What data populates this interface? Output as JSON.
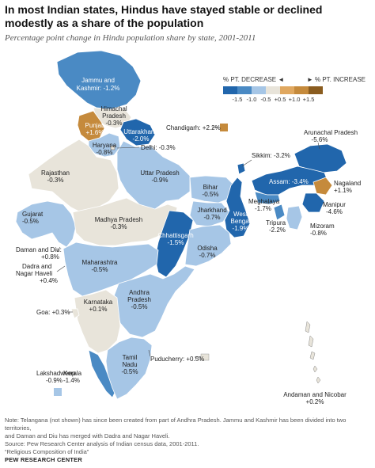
{
  "title": "In most Indian states, Hindus have stayed stable or declined modestly as a share of the population",
  "subtitle": "Percentage point change in Hindu population share by state, 2001-2011",
  "legend": {
    "decrease_label": "% PT. DECREASE ◄",
    "increase_label": "► % PT. INCREASE",
    "ticks": [
      "-1.5",
      "-1.0",
      "-0.5",
      "+0.5",
      "+1.0",
      "+1.5"
    ],
    "colors": [
      "#2166ac",
      "#4a8ac4",
      "#a6c6e6",
      "#e8e4da",
      "#e0a860",
      "#c58a3c",
      "#8a5c1f"
    ]
  },
  "colors": {
    "strong_decrease": "#2166ac",
    "medium_decrease": "#4a8ac4",
    "light_decrease": "#a6c6e6",
    "stable": "#e8e4da",
    "increase": "#c58a3c",
    "small_increase": "#e8e4da"
  },
  "states": {
    "jk": {
      "name": "Jammu and Kashmir",
      "value": "-1.2%"
    },
    "hp": {
      "name": "Himachal Pradesh",
      "value": "-0.3%"
    },
    "punjab": {
      "name": "Punjab",
      "value": "+1.6%"
    },
    "uttarakhand": {
      "name": "Uttarakhand",
      "value": "-2.0%"
    },
    "chandigarh": {
      "name": "Chandigarh",
      "value": "+2.2%"
    },
    "haryana": {
      "name": "Haryana",
      "value": "-0.8%"
    },
    "delhi": {
      "name": "Delhi",
      "value": "-0.3%"
    },
    "rajasthan": {
      "name": "Rajasthan",
      "value": "-0.3%"
    },
    "up": {
      "name": "Uttar Pradesh",
      "value": "-0.9%"
    },
    "sikkim": {
      "name": "Sikkim",
      "value": "-3.2%"
    },
    "arunachal": {
      "name": "Arunachal Pradesh",
      "value": "-5.6%"
    },
    "assam": {
      "name": "Assam",
      "value": "-3.4%"
    },
    "nagaland": {
      "name": "Nagaland",
      "value": "+1.1%"
    },
    "bihar": {
      "name": "Bihar",
      "value": "-0.5%"
    },
    "meghalaya": {
      "name": "Meghalaya",
      "value": "-1.7%"
    },
    "manipur": {
      "name": "Manipur",
      "value": "-4.6%"
    },
    "gujarat": {
      "name": "Gujarat",
      "value": "-0.5%"
    },
    "mp": {
      "name": "Madhya Pradesh",
      "value": "-0.3%"
    },
    "jharkhand": {
      "name": "Jharkhand",
      "value": "-0.7%"
    },
    "wb": {
      "name": "West Bengal",
      "value": "-1.9%"
    },
    "tripura": {
      "name": "Tripura",
      "value": "-2.2%"
    },
    "mizoram": {
      "name": "Mizoram",
      "value": "-0.8%"
    },
    "daman": {
      "name": "Daman and Diu",
      "value": "+0.8%"
    },
    "dadra": {
      "name": "Dadra and Nagar Haveli",
      "value": "+0.4%"
    },
    "chhattisgarh": {
      "name": "Chhattisgarh",
      "value": "-1.5%"
    },
    "odisha": {
      "name": "Odisha",
      "value": "-0.7%"
    },
    "maharashtra": {
      "name": "Maharashtra",
      "value": "-0.5%"
    },
    "ap": {
      "name": "Andhra Pradesh",
      "value": "-0.5%"
    },
    "karnataka": {
      "name": "Karnataka",
      "value": "+0.1%"
    },
    "goa": {
      "name": "Goa",
      "value": "+0.3%"
    },
    "puducherry": {
      "name": "Puducherry",
      "value": "+0.5%"
    },
    "tn": {
      "name": "Tamil Nadu",
      "value": "-0.5%"
    },
    "lakshadweep": {
      "name": "Lakshadweep",
      "value": "-0.9%"
    },
    "kerala": {
      "name": "Kerala",
      "value": "-1.4%"
    },
    "andaman": {
      "name": "Andaman and Nicobar",
      "value": "+0.2%"
    }
  },
  "labels": {
    "jk_l1": "Jammu and",
    "jk_l2": "Kashmir: -1.2%",
    "hp_l1": "Himachal",
    "hp_l2": "Pradesh",
    "hp_l3": "-0.3%",
    "punjab_l1": "Punjab",
    "punjab_l2": "+1.6%",
    "uttarakhand_l1": "Uttarakhand",
    "uttarakhand_l2": "-2.0%",
    "chandigarh_l": "Chandigarh: +2.2%",
    "haryana_l1": "Haryana",
    "haryana_l2": "-0.8%",
    "delhi_l": "Delhi: -0.3%",
    "rajasthan_l1": "Rajasthan",
    "rajasthan_l2": "-0.3%",
    "up_l1": "Uttar Pradesh",
    "up_l2": "-0.9%",
    "sikkim_l": "Sikkim: -3.2%",
    "arunachal_l1": "Arunachal Pradesh",
    "arunachal_l2": "-5.6%",
    "assam_l": "Assam: -3.4%",
    "nagaland_l1": "Nagaland",
    "nagaland_l2": "+1.1%",
    "bihar_l1": "Bihar",
    "bihar_l2": "-0.5%",
    "meghalaya_l1": "Meghalaya",
    "meghalaya_l2": "-1.7%",
    "manipur_l1": "Manipur",
    "manipur_l2": "-4.6%",
    "gujarat_l1": "Gujarat",
    "gujarat_l2": "-0.5%",
    "mp_l1": "Madhya Pradesh",
    "mp_l2": "-0.3%",
    "jharkhand_l1": "Jharkhand",
    "jharkhand_l2": "-0.7%",
    "wb_l1": "West",
    "wb_l2": "Bengal",
    "wb_l3": "-1.9%",
    "tripura_l1": "Tripura",
    "tripura_l2": "-2.2%",
    "mizoram_l1": "Mizoram",
    "mizoram_l2": "-0.8%",
    "daman_l1": "Daman and Diu:",
    "daman_l2": "+0.8%",
    "dadra_l1": "Dadra and",
    "dadra_l2": "Nagar Haveli",
    "dadra_l3": "+0.4%",
    "chhattisgarh_l1": "Chhattisgarh",
    "chhattisgarh_l2": "-1.5%",
    "odisha_l1": "Odisha",
    "odisha_l2": "-0.7%",
    "maharashtra_l1": "Maharashtra",
    "maharashtra_l2": "-0.5%",
    "ap_l1": "Andhra",
    "ap_l2": "Pradesh",
    "ap_l3": "-0.5%",
    "karnataka_l1": "Karnataka",
    "karnataka_l2": "+0.1%",
    "goa_l": "Goa: +0.3%",
    "puducherry_l": "Puducherry: +0.5%",
    "tn_l1": "Tamil",
    "tn_l2": "Nadu",
    "tn_l3": "-0.5%",
    "lakshadweep_l1": "Lakshadweep",
    "lakshadweep_l2": "-0.9%",
    "kerala_l1": "Kerala",
    "kerala_l2": "-1.4%",
    "andaman_l1": "Andaman and Nicobar",
    "andaman_l2": "+0.2%"
  },
  "notes": {
    "line1": "Note: Telangana (not shown) has since been created from part of Andhra Pradesh. Jammu and Kashmir has been divided into two territories,",
    "line2": "and Daman and Diu has merged with Dadra and Nagar Haveli.",
    "line3": "Source: Pew Research Center analysis of Indian census data, 2001-2011.",
    "line4": "“Religious Composition of India”"
  },
  "footer": "PEW RESEARCH CENTER"
}
